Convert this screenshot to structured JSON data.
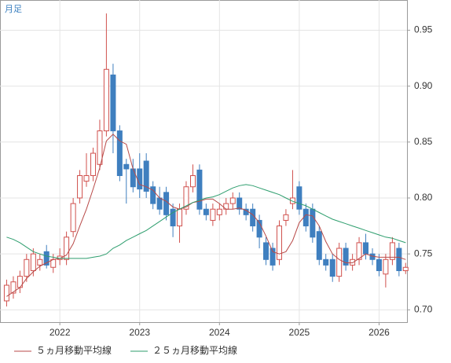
{
  "chart_data": {
    "type": "candlestick",
    "label": "月足",
    "x": [
      2021.333,
      2021.417,
      2021.5,
      2021.583,
      2021.667,
      2021.75,
      2021.833,
      2021.917,
      2022,
      2022.083,
      2022.167,
      2022.25,
      2022.333,
      2022.417,
      2022.5,
      2022.583,
      2022.667,
      2022.75,
      2022.833,
      2022.917,
      2023,
      2023.083,
      2023.167,
      2023.25,
      2023.333,
      2023.417,
      2023.5,
      2023.583,
      2023.667,
      2023.75,
      2023.833,
      2023.917,
      2024,
      2024.083,
      2024.167,
      2024.25,
      2024.333,
      2024.417,
      2024.5,
      2024.583,
      2024.667,
      2024.75,
      2024.833,
      2024.917,
      2025,
      2025.083,
      2025.167,
      2025.25,
      2025.333,
      2025.417,
      2025.5,
      2025.583,
      2025.667,
      2025.75,
      2025.833,
      2025.917,
      2026,
      2026.083,
      2026.167,
      2026.25,
      2026.333
    ],
    "xlim": [
      2021.25,
      2026.35
    ],
    "xticks": [
      2022,
      2023,
      2024,
      2025,
      2026
    ],
    "ylim": [
      0.689,
      0.977
    ],
    "yticks": [
      {
        "value": 0.7,
        "label": "0.70"
      },
      {
        "value": 0.75,
        "label": "0.75"
      },
      {
        "value": 0.8,
        "label": "0.80"
      },
      {
        "value": 0.85,
        "label": "0.85"
      },
      {
        "value": 0.9,
        "label": "0.90"
      },
      {
        "value": 0.95,
        "label": "0.95"
      }
    ],
    "grid": true,
    "candles": {
      "up_color": "#d0504d",
      "down_color": "#3f7fbf",
      "open": [
        0.708,
        0.715,
        0.72,
        0.73,
        0.735,
        0.74,
        0.752,
        0.738,
        0.745,
        0.745,
        0.77,
        0.8,
        0.815,
        0.82,
        0.83,
        0.86,
        0.91,
        0.86,
        0.83,
        0.826,
        0.826,
        0.833,
        0.81,
        0.8,
        0.805,
        0.79,
        0.775,
        0.79,
        0.81,
        0.825,
        0.79,
        0.78,
        0.785,
        0.79,
        0.795,
        0.8,
        0.79,
        0.79,
        0.78,
        0.76,
        0.755,
        0.745,
        0.78,
        0.795,
        0.81,
        0.79,
        0.79,
        0.77,
        0.745,
        0.745,
        0.73,
        0.755,
        0.74,
        0.745,
        0.76,
        0.75,
        0.745,
        0.732,
        0.745,
        0.755,
        0.735
      ],
      "high": [
        0.727,
        0.73,
        0.735,
        0.75,
        0.755,
        0.75,
        0.758,
        0.75,
        0.755,
        0.77,
        0.8,
        0.825,
        0.84,
        0.845,
        0.87,
        0.965,
        0.92,
        0.865,
        0.835,
        0.835,
        0.84,
        0.84,
        0.815,
        0.81,
        0.81,
        0.795,
        0.795,
        0.815,
        0.83,
        0.83,
        0.795,
        0.795,
        0.795,
        0.8,
        0.805,
        0.805,
        0.795,
        0.795,
        0.785,
        0.765,
        0.76,
        0.78,
        0.79,
        0.825,
        0.815,
        0.795,
        0.795,
        0.775,
        0.75,
        0.75,
        0.76,
        0.76,
        0.75,
        0.765,
        0.768,
        0.755,
        0.75,
        0.75,
        0.765,
        0.76,
        0.742
      ],
      "low": [
        0.703,
        0.71,
        0.715,
        0.725,
        0.73,
        0.735,
        0.737,
        0.733,
        0.74,
        0.74,
        0.765,
        0.795,
        0.81,
        0.815,
        0.825,
        0.855,
        0.84,
        0.815,
        0.795,
        0.805,
        0.8,
        0.8,
        0.79,
        0.785,
        0.78,
        0.765,
        0.76,
        0.785,
        0.805,
        0.785,
        0.78,
        0.775,
        0.78,
        0.785,
        0.79,
        0.785,
        0.78,
        0.77,
        0.755,
        0.74,
        0.735,
        0.74,
        0.775,
        0.79,
        0.785,
        0.77,
        0.76,
        0.74,
        0.735,
        0.725,
        0.725,
        0.735,
        0.735,
        0.74,
        0.745,
        0.74,
        0.73,
        0.72,
        0.74,
        0.73,
        0.732
      ],
      "close": [
        0.722,
        0.725,
        0.73,
        0.745,
        0.75,
        0.745,
        0.74,
        0.745,
        0.748,
        0.765,
        0.795,
        0.82,
        0.82,
        0.84,
        0.86,
        0.915,
        0.86,
        0.82,
        0.826,
        0.81,
        0.808,
        0.806,
        0.795,
        0.79,
        0.785,
        0.775,
        0.79,
        0.81,
        0.82,
        0.79,
        0.785,
        0.79,
        0.79,
        0.795,
        0.8,
        0.79,
        0.785,
        0.775,
        0.765,
        0.745,
        0.74,
        0.775,
        0.785,
        0.8,
        0.79,
        0.775,
        0.765,
        0.745,
        0.74,
        0.73,
        0.755,
        0.74,
        0.745,
        0.76,
        0.75,
        0.745,
        0.735,
        0.745,
        0.76,
        0.735,
        0.738
      ]
    },
    "series": [
      {
        "name": "５ヵ月移動平均線",
        "color": "#b84a48",
        "values": [
          0.712,
          0.716,
          0.72,
          0.728,
          0.734,
          0.739,
          0.742,
          0.745,
          0.746,
          0.749,
          0.759,
          0.775,
          0.79,
          0.808,
          0.827,
          0.851,
          0.857,
          0.851,
          0.848,
          0.826,
          0.812,
          0.81,
          0.807,
          0.8,
          0.797,
          0.792,
          0.79,
          0.792,
          0.796,
          0.797,
          0.799,
          0.799,
          0.795,
          0.79,
          0.79,
          0.791,
          0.789,
          0.785,
          0.778,
          0.766,
          0.752,
          0.75,
          0.752,
          0.762,
          0.778,
          0.785,
          0.784,
          0.775,
          0.761,
          0.75,
          0.745,
          0.742,
          0.742,
          0.746,
          0.75,
          0.748,
          0.747,
          0.747,
          0.747,
          0.747,
          0.745
        ]
      },
      {
        "name": "２５ヵ月移動平均線",
        "color": "#2e9e6e",
        "values": [
          0.765,
          0.763,
          0.76,
          0.756,
          0.752,
          0.75,
          0.748,
          0.747,
          0.746,
          0.746,
          0.746,
          0.746,
          0.746,
          0.747,
          0.748,
          0.75,
          0.755,
          0.758,
          0.762,
          0.765,
          0.768,
          0.771,
          0.775,
          0.779,
          0.783,
          0.787,
          0.79,
          0.793,
          0.796,
          0.798,
          0.8,
          0.801,
          0.803,
          0.806,
          0.809,
          0.811,
          0.812,
          0.811,
          0.809,
          0.807,
          0.805,
          0.803,
          0.8,
          0.797,
          0.795,
          0.793,
          0.79,
          0.787,
          0.784,
          0.781,
          0.779,
          0.777,
          0.775,
          0.773,
          0.771,
          0.769,
          0.767,
          0.765,
          0.764,
          0.762,
          0.76
        ]
      }
    ]
  }
}
